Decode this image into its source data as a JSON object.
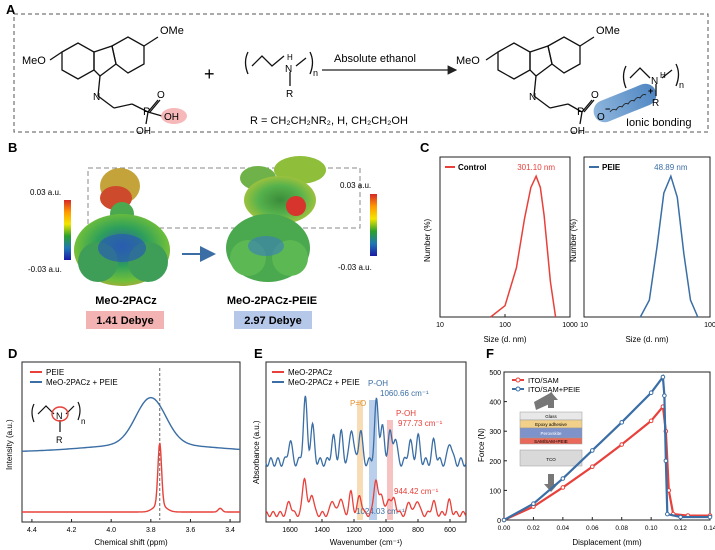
{
  "panels": {
    "A": {
      "letter": "A",
      "arrow_label": "Absolute ethanol",
      "r_definition": "R = CH₂CH₂NR₂, H, CH₂CH₂OH",
      "ionic_label": "Ionic bonding",
      "reactant1": {
        "meo_top": "OMe",
        "meo_left": "MeO",
        "p": "P",
        "o": "O",
        "oh1": "OH",
        "oh2": "OH",
        "n": "N"
      },
      "reactant2": {
        "n": "N",
        "h": "H",
        "r": "R",
        "sub": "n"
      },
      "product": {
        "meo_top": "OMe",
        "meo_left": "MeO",
        "p": "P",
        "o": "O",
        "o_minus": "O",
        "oh": "OH",
        "nh": "N",
        "h": "H",
        "r": "R",
        "sub": "n",
        "minus": "−",
        "plus": "+"
      },
      "plus_sign": "+"
    },
    "B": {
      "letter": "B",
      "scale_top": "0.03 a.u.",
      "scale_bottom": "-0.03 a.u.",
      "left_name": "MeO-2PACz",
      "left_dipole": "1.41 Debye",
      "right_name": "MeO-2PACz-PEIE",
      "right_dipole": "2.97 Debye",
      "scale_colors": [
        "#d62728",
        "#ff9900",
        "#f2e600",
        "#2ca02c",
        "#1f77b4",
        "#1a1aa6"
      ]
    },
    "C": {
      "letter": "C"
    },
    "D": {
      "letter": "D"
    },
    "E": {
      "letter": "E",
      "ann_po": "P=O",
      "ann_poh_blue": "P-OH",
      "ann_1060": "1060.66 cm⁻¹",
      "ann_poh_red": "P-OH",
      "ann_977": "977.73 cm⁻¹",
      "ann_944": "944.42 cm⁻¹",
      "ann_1024": "1024.03 cm⁻¹"
    },
    "F": {
      "letter": "F",
      "stack": [
        "Glass",
        "Epoxy adhesive",
        "Perovskite",
        "SAM/SAM+PEIE",
        "TCO"
      ]
    }
  },
  "chart_data": [
    {
      "id": "C-left",
      "type": "line",
      "series": [
        {
          "name": "Control",
          "color": "#e8403a",
          "peak_label": "301.10 nm",
          "x": [
            60,
            100,
            150,
            200,
            250,
            301.1,
            350,
            400,
            500,
            600
          ],
          "y": [
            0,
            0.08,
            0.35,
            0.7,
            0.92,
            1.0,
            0.92,
            0.72,
            0.25,
            0
          ]
        }
      ],
      "xlabel": "Size (d. nm)",
      "ylabel": "Number (%)",
      "xscale": "log",
      "xlim": [
        10,
        1000
      ],
      "xticks": [
        "10",
        "100",
        "1000"
      ],
      "legend": "top-left"
    },
    {
      "id": "C-right",
      "type": "line",
      "series": [
        {
          "name": "PEIE",
          "color": "#3a6ea5",
          "peak_label": "48.89 nm",
          "x": [
            28,
            33,
            38,
            43,
            48.89,
            55,
            62,
            70,
            80
          ],
          "y": [
            0,
            0.12,
            0.5,
            0.88,
            1.0,
            0.85,
            0.45,
            0.12,
            0
          ]
        }
      ],
      "xlabel": "Size (d. nm)",
      "xscale": "log",
      "xlim": [
        10,
        100
      ],
      "xticks": [
        "10",
        "100"
      ],
      "legend": "top-left"
    },
    {
      "id": "D",
      "type": "line",
      "series": [
        {
          "name": "PEIE",
          "color": "#e8403a"
        },
        {
          "name": "MeO-2PACz + PEIE",
          "color": "#3a6ea5"
        }
      ],
      "xlabel": "Chemical shift (ppm)",
      "ylabel": "Intensity (a.u.)",
      "xlim": [
        4.45,
        3.35
      ],
      "xticks": [
        "4.4",
        "4.2",
        "4.0",
        "3.8",
        "3.6",
        "3.4"
      ],
      "inset_labels": {
        "n": "N",
        "r": "R",
        "sub": "n"
      },
      "legend": "top-left"
    },
    {
      "id": "E",
      "type": "line",
      "series": [
        {
          "name": "MeO-2PACz",
          "color": "#e8403a"
        },
        {
          "name": "MeO-2PACz + PEIE",
          "color": "#3a6ea5"
        }
      ],
      "xlabel": "Wavenumber (cm⁻¹)",
      "ylabel": "Absorbance (a.u.)",
      "xlim": [
        1750,
        500
      ],
      "xticks": [
        "1600",
        "1400",
        "1200",
        "1000",
        "800",
        "600"
      ],
      "legend": "top-left"
    },
    {
      "id": "F",
      "type": "line",
      "series": [
        {
          "name": "ITO/SAM",
          "color": "#e8403a",
          "x": [
            0,
            0.02,
            0.04,
            0.06,
            0.08,
            0.1,
            0.108,
            0.11,
            0.112,
            0.115,
            0.125,
            0.14
          ],
          "y": [
            0,
            45,
            110,
            180,
            255,
            335,
            383,
            300,
            100,
            20,
            15,
            15
          ]
        },
        {
          "name": "ITO/SAM+PEIE",
          "color": "#3a6ea5",
          "x": [
            0,
            0.02,
            0.04,
            0.06,
            0.08,
            0.1,
            0.108,
            0.109,
            0.11,
            0.111,
            0.12,
            0.14
          ],
          "y": [
            0,
            55,
            140,
            235,
            330,
            430,
            483,
            420,
            200,
            20,
            10,
            10
          ]
        }
      ],
      "xlabel": "Displacement (mm)",
      "ylabel": "Force (N)",
      "xlim": [
        0,
        0.14
      ],
      "ylim": [
        0,
        500
      ],
      "xticks": [
        "0.00",
        "0.02",
        "0.04",
        "0.06",
        "0.08",
        "0.10",
        "0.12",
        "0.14"
      ],
      "yticks": [
        "0",
        "100",
        "200",
        "300",
        "400",
        "500"
      ],
      "legend": "top-left"
    }
  ]
}
